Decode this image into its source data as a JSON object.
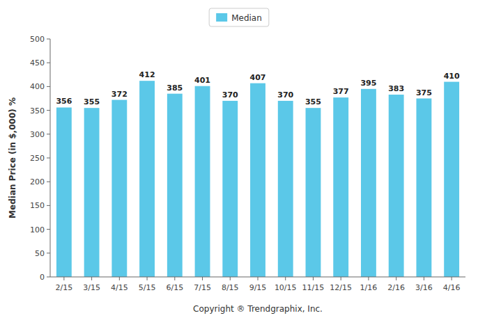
{
  "chart_data": {
    "type": "bar",
    "categories": [
      "2/15",
      "3/15",
      "4/15",
      "5/15",
      "6/15",
      "7/15",
      "8/15",
      "9/15",
      "10/15",
      "11/15",
      "12/15",
      "1/16",
      "2/16",
      "3/16",
      "4/16"
    ],
    "series": [
      {
        "name": "Median",
        "color": "#5BC8E8",
        "values": [
          356,
          355,
          372,
          412,
          385,
          401,
          370,
          407,
          370,
          355,
          377,
          395,
          383,
          375,
          410
        ]
      }
    ],
    "xlabel": "Copyright ® Trendgraphix, Inc.",
    "ylabel": "Median Price (in $,000) %",
    "ylim": [
      0,
      500
    ],
    "yticks": [
      0,
      50,
      100,
      150,
      200,
      250,
      300,
      350,
      400,
      450,
      500
    ],
    "grid": false,
    "legend": "top",
    "data_labels": true
  }
}
